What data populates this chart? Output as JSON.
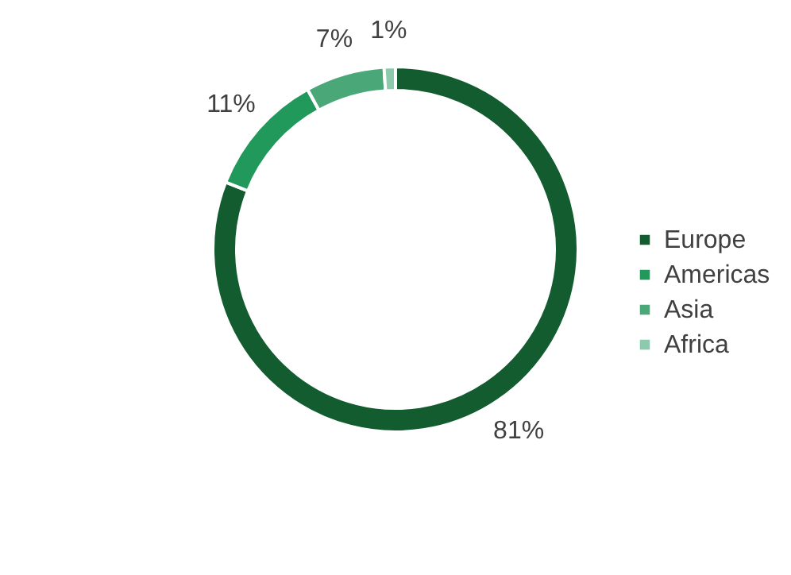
{
  "chart_data": {
    "type": "donut",
    "categories": [
      "Europe",
      "Americas",
      "Asia",
      "Africa"
    ],
    "values": [
      81,
      11,
      7,
      1
    ],
    "colors": [
      "#135c2f",
      "#20995b",
      "#4aa778",
      "#8ccaae"
    ],
    "value_labels": [
      "81%",
      "11%",
      "7%",
      "1%"
    ],
    "legend": "right"
  }
}
